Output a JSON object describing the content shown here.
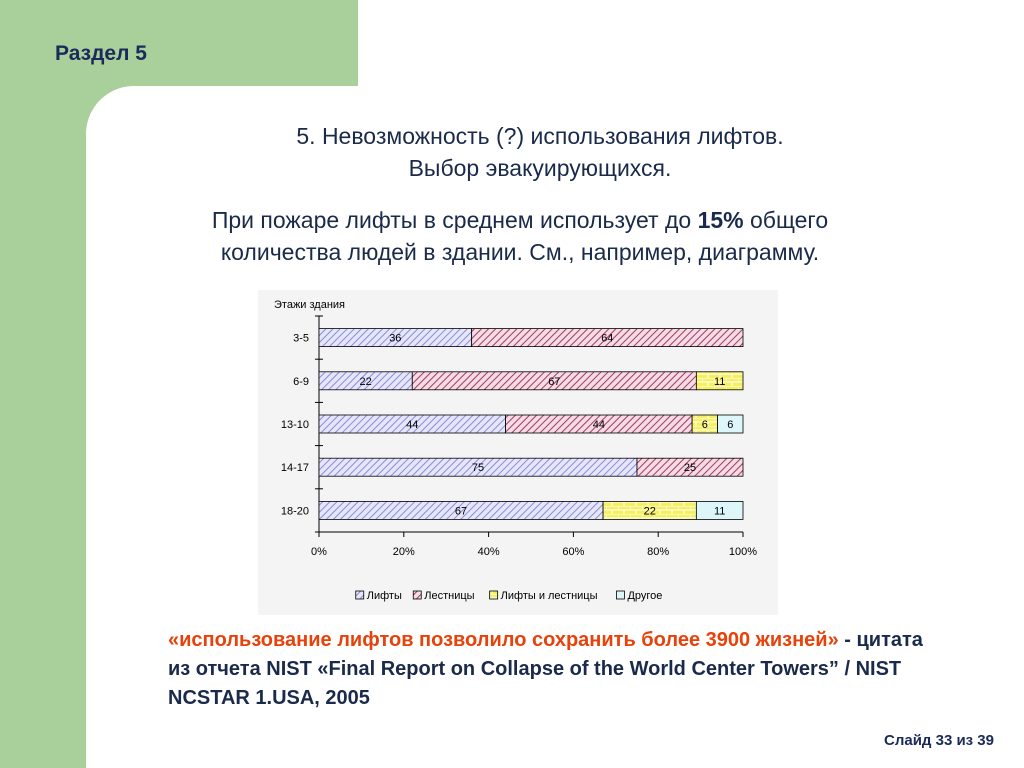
{
  "section": "Раздел 5",
  "title_line1": "5. Невозможность (?) использования лифтов.",
  "title_line2": "Выбор эвакуирующихся.",
  "subtitle_part1": "При пожаре лифты в среднем использует до ",
  "subtitle_bold": "15%",
  "subtitle_part2": " общего количества людей в здании. См., например, диаграмму.",
  "quote_red": "«использование лифтов позволило сохранить более 3900 жизней»",
  "quote_rest": " - цитата из  отчета NIST  «Final Report on Collapse of the World Center Towers” / NIST NCSTAR 1.USA, 2005",
  "footer": "Слайд 33 из 39",
  "chart_data": {
    "type": "bar",
    "orientation": "horizontal",
    "stacked": "percent",
    "ylabel": "Этажи здания",
    "categories": [
      "3-5",
      "6-9",
      "13-10",
      "14-17",
      "18-20"
    ],
    "xticks": [
      "0%",
      "20%",
      "40%",
      "60%",
      "80%",
      "100%"
    ],
    "xlim": [
      0,
      100
    ],
    "legend_position": "bottom",
    "series": [
      {
        "name": "Лифты",
        "values": [
          36,
          22,
          44,
          75,
          67
        ],
        "color": "#b8b8ee",
        "pattern": "diag-blue"
      },
      {
        "name": "Лестницы",
        "values": [
          64,
          67,
          44,
          25,
          0
        ],
        "color": "#c07090",
        "pattern": "diag-red"
      },
      {
        "name": "Лифты и лестницы",
        "values": [
          0,
          11,
          6,
          0,
          22
        ],
        "color": "#f2ee60",
        "pattern": "brick"
      },
      {
        "name": "Другое",
        "values": [
          0,
          0,
          6,
          0,
          11
        ],
        "color": "#dcf6fa",
        "pattern": "solid"
      }
    ],
    "data_labels": [
      [
        "36",
        "64",
        "",
        ""
      ],
      [
        "22",
        "67",
        "11",
        ""
      ],
      [
        "44",
        "44",
        "6",
        "6"
      ],
      [
        "75",
        "25",
        "",
        ""
      ],
      [
        "67",
        "",
        "22",
        "11"
      ]
    ]
  }
}
